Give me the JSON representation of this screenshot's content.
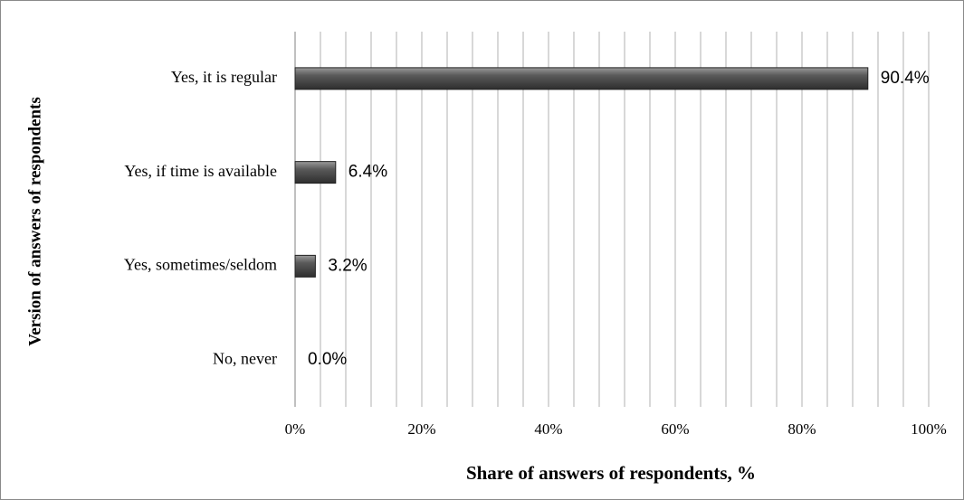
{
  "chart_data": {
    "type": "bar",
    "orientation": "horizontal",
    "xlabel": "Share of answers of respondents, %",
    "ylabel": "Version of answers of respondents",
    "categories": [
      "Yes, it is regular",
      "Yes, if time is available",
      "Yes, sometimes/seldom",
      "No, never"
    ],
    "values": [
      90.4,
      6.4,
      3.2,
      0
    ],
    "value_labels": [
      "90.4%",
      "6.4%",
      "3.2%",
      "0.0%"
    ],
    "color": "#555555",
    "xlim": [
      0,
      100
    ],
    "xticks": [
      {
        "value": 0,
        "label": "0%"
      },
      {
        "value": 20,
        "label": "20%"
      },
      {
        "value": 40,
        "label": "40%"
      },
      {
        "value": 60,
        "label": "60%"
      },
      {
        "value": 80,
        "label": "80%"
      },
      {
        "value": 100,
        "label": "100%"
      }
    ],
    "minor_grid": [
      4,
      8,
      12,
      16,
      24,
      28,
      32,
      36,
      44,
      48,
      52,
      56,
      64,
      68,
      72,
      76,
      84,
      88,
      92,
      96
    ],
    "grid": true
  }
}
